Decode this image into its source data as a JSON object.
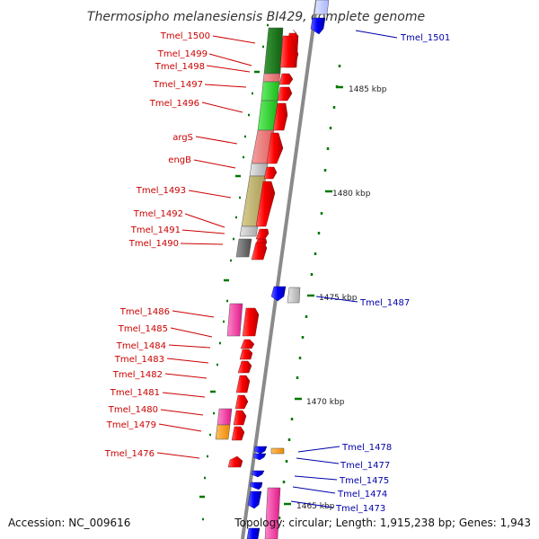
{
  "title": "Thermosipho melanesiensis BI429, complete genome",
  "accession": "Accession: NC_009616",
  "topology": "Topology: circular; Length: 1,915,238 bp; Genes: 1,943",
  "kbp_labels": [
    "1485 kbp",
    "1480 kbp",
    "1475 kbp",
    "1470 kbp",
    "1465 kbp"
  ],
  "left_labels": [
    "Tmel_1500",
    "Tmel_1499",
    "Tmel_1498",
    "Tmel_1497",
    "Tmel_1496",
    "argS",
    "engB",
    "Tmel_1493",
    "Tmel_1492",
    "Tmel_1491",
    "Tmel_1490",
    "Tmel_1486",
    "Tmel_1485",
    "Tmel_1484",
    "Tmel_1483",
    "Tmel_1482",
    "Tmel_1481",
    "Tmel_1480",
    "Tmel_1479",
    "Tmel_1476"
  ],
  "right_labels": [
    "Tmel_1501",
    "Tmel_1487",
    "Tmel_1478",
    "Tmel_1477",
    "Tmel_1475",
    "Tmel_1474",
    "Tmel_1473"
  ],
  "colors": {
    "backbone": "#8a8a8a",
    "gene_red": "#ff0000",
    "gene_blue": "#0000ff",
    "label_red": "#cc0000",
    "label_blue": "#0000aa",
    "tick_green": "#007700"
  }
}
